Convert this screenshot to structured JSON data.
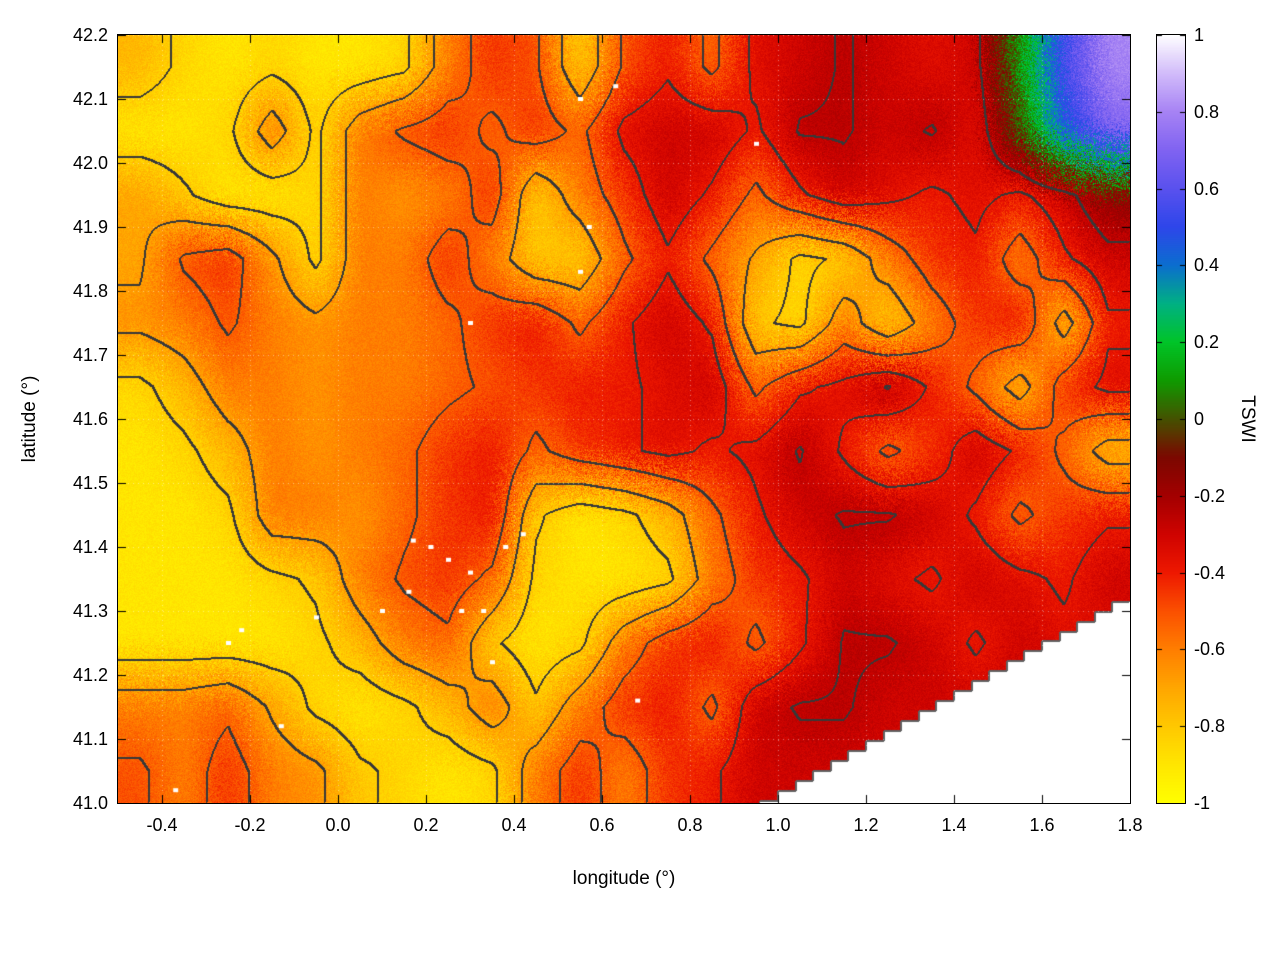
{
  "figure": {
    "background": "#ffffff",
    "axis_color": "#000000"
  },
  "chart_data": {
    "type": "heatmap",
    "title": "",
    "xlabel": "longitude (°)",
    "ylabel": "latitude (°)",
    "colorbar_label": "TSWI",
    "x_range": [
      -0.5,
      1.8
    ],
    "y_range": [
      41.0,
      42.2
    ],
    "z_range": [
      -1,
      1
    ],
    "grid_on": true,
    "legend_position": "right-colorbar",
    "ticks_x": {
      "values": [
        -0.4,
        -0.2,
        0.0,
        0.2,
        0.4,
        0.6,
        0.8,
        1.0,
        1.2,
        1.4,
        1.6,
        1.8
      ],
      "labels": [
        "-0.4",
        "-0.2",
        "0.0",
        "0.2",
        "0.4",
        "0.6",
        "0.8",
        "1.0",
        "1.2",
        "1.4",
        "1.6",
        "1.8"
      ]
    },
    "ticks_y": {
      "values": [
        41.0,
        41.1,
        41.2,
        41.3,
        41.4,
        41.5,
        41.6,
        41.7,
        41.8,
        41.9,
        42.0,
        42.1,
        42.2
      ],
      "labels": [
        "41.0",
        "41.1",
        "41.2",
        "41.3",
        "41.4",
        "41.5",
        "41.6",
        "41.7",
        "41.8",
        "41.9",
        "42.0",
        "42.1",
        "42.2"
      ]
    },
    "ticks_cb": {
      "values": [
        1,
        0.8,
        0.6,
        0.4,
        0.2,
        0,
        -0.2,
        -0.4,
        -0.6,
        -0.8,
        -1
      ],
      "labels": [
        "1",
        "0.8",
        "0.6",
        "0.4",
        "0.2",
        "0",
        "-0.2",
        "-0.4",
        "-0.6",
        "-0.8",
        "-1"
      ]
    },
    "palette": [
      [
        -1.0,
        "#ffff00"
      ],
      [
        -0.9,
        "#ffe600"
      ],
      [
        -0.8,
        "#ffc800"
      ],
      [
        -0.7,
        "#ffa600"
      ],
      [
        -0.6,
        "#ff7e00"
      ],
      [
        -0.5,
        "#fb5000"
      ],
      [
        -0.4,
        "#ee1800"
      ],
      [
        -0.3,
        "#cf0300"
      ],
      [
        -0.2,
        "#a30000"
      ],
      [
        -0.1,
        "#7c0800"
      ],
      [
        0.0,
        "#455200"
      ],
      [
        0.1,
        "#0f9b00"
      ],
      [
        0.2,
        "#00c428"
      ],
      [
        0.3,
        "#00b183"
      ],
      [
        0.4,
        "#0b6ecf"
      ],
      [
        0.5,
        "#2e46ea"
      ],
      [
        0.6,
        "#5a51ee"
      ],
      [
        0.7,
        "#8063f1"
      ],
      [
        0.8,
        "#a783f4"
      ],
      [
        0.9,
        "#d2bcfa"
      ],
      [
        1.0,
        "#ffffff"
      ]
    ],
    "contour_levels": [
      -0.82,
      -0.68,
      -0.52,
      -0.38,
      -0.26
    ],
    "contour_color": "#383838",
    "coast_color": "#606060",
    "sea_color": "#ffffff",
    "coast": {
      "x_start": 0.95,
      "y_start": 41.0,
      "x_end": 1.8,
      "y_end": 41.33
    },
    "grid": {
      "comment": "approximate TSWI values sampled on a 0.1 deg grid; rows from lat 42.15 down to 41.05, cols from lon -0.45 to 1.75; null = sea / no data",
      "x0": -0.45,
      "dx": 0.1,
      "y0": 42.15,
      "dy": -0.1,
      "cols": 23,
      "rows": 12,
      "values": [
        [
          -0.75,
          -0.85,
          -0.9,
          -0.85,
          -0.9,
          -0.9,
          -0.85,
          -0.6,
          -0.45,
          -0.5,
          -0.8,
          -0.5,
          -0.4,
          -0.55,
          -0.35,
          -0.3,
          -0.25,
          -0.3,
          -0.35,
          -0.3,
          0.1,
          0.55,
          0.8
        ],
        [
          -0.9,
          -0.9,
          -0.85,
          -0.6,
          -0.85,
          -0.6,
          -0.5,
          -0.45,
          -0.55,
          -0.45,
          -0.55,
          -0.35,
          -0.3,
          -0.3,
          -0.4,
          -0.25,
          -0.25,
          -0.3,
          -0.25,
          -0.35,
          0.0,
          0.45,
          0.7
        ],
        [
          -0.7,
          -0.8,
          -0.9,
          -0.9,
          -0.85,
          -0.6,
          -0.65,
          -0.6,
          -0.45,
          -0.8,
          -0.6,
          -0.45,
          -0.3,
          -0.4,
          -0.55,
          -0.4,
          -0.3,
          -0.35,
          -0.4,
          -0.35,
          -0.4,
          -0.3,
          -0.15
        ],
        [
          -0.7,
          -0.5,
          -0.45,
          -0.65,
          -0.85,
          -0.6,
          -0.6,
          -0.45,
          -0.6,
          -0.8,
          -0.8,
          -0.55,
          -0.4,
          -0.55,
          -0.7,
          -0.85,
          -0.8,
          -0.6,
          -0.45,
          -0.4,
          -0.6,
          -0.4,
          -0.3
        ],
        [
          -0.65,
          -0.6,
          -0.5,
          -0.6,
          -0.65,
          -0.6,
          -0.6,
          -0.55,
          -0.45,
          -0.4,
          -0.55,
          -0.4,
          -0.3,
          -0.4,
          -0.8,
          -0.85,
          -0.6,
          -0.8,
          -0.6,
          -0.45,
          -0.4,
          -0.75,
          -0.4
        ],
        [
          -0.85,
          -0.75,
          -0.6,
          -0.6,
          -0.65,
          -0.6,
          -0.6,
          -0.55,
          -0.5,
          -0.45,
          -0.4,
          -0.4,
          -0.35,
          -0.3,
          -0.55,
          -0.4,
          -0.35,
          -0.25,
          -0.4,
          -0.55,
          -0.75,
          -0.45,
          -0.35
        ],
        [
          -0.9,
          -0.85,
          -0.75,
          -0.6,
          -0.65,
          -0.6,
          -0.55,
          -0.45,
          -0.4,
          -0.55,
          -0.45,
          -0.4,
          -0.35,
          -0.4,
          -0.35,
          -0.25,
          -0.4,
          -0.55,
          -0.45,
          -0.3,
          -0.4,
          -0.55,
          -0.75
        ],
        [
          -0.9,
          -0.9,
          -0.85,
          -0.6,
          -0.6,
          -0.65,
          -0.55,
          -0.45,
          -0.4,
          -0.8,
          -0.9,
          -0.85,
          -0.75,
          -0.55,
          -0.4,
          -0.3,
          -0.25,
          -0.25,
          -0.3,
          -0.4,
          -0.55,
          -0.45,
          -0.4
        ],
        [
          -0.9,
          -0.9,
          -0.9,
          -0.85,
          -0.8,
          -0.6,
          -0.5,
          -0.45,
          -0.55,
          -0.85,
          -0.9,
          -0.9,
          -0.85,
          -0.6,
          -0.45,
          -0.4,
          -0.3,
          -0.35,
          -0.4,
          -0.3,
          -0.35,
          -0.4,
          -0.3
        ],
        [
          -0.9,
          -0.9,
          -0.9,
          -0.9,
          -0.85,
          -0.75,
          -0.6,
          -0.55,
          -0.8,
          -0.9,
          -0.85,
          -0.6,
          -0.45,
          -0.4,
          -0.55,
          -0.4,
          -0.25,
          -0.25,
          -0.3,
          -0.4,
          -0.3,
          -0.35,
          null
        ],
        [
          -0.6,
          -0.6,
          -0.55,
          -0.7,
          -0.85,
          -0.9,
          -0.85,
          -0.75,
          -0.6,
          -0.8,
          -0.6,
          -0.45,
          -0.4,
          -0.55,
          -0.3,
          -0.25,
          -0.25,
          -0.3,
          null,
          null,
          null,
          null,
          null
        ],
        [
          -0.5,
          -0.6,
          -0.45,
          -0.6,
          -0.65,
          -0.8,
          -0.85,
          -0.9,
          -0.85,
          -0.6,
          -0.45,
          -0.6,
          -0.45,
          -0.4,
          -0.3,
          null,
          null,
          null,
          null,
          null,
          null,
          null,
          null
        ]
      ]
    },
    "nodata_spots": [
      [
        0.17,
        41.41
      ],
      [
        0.21,
        41.4
      ],
      [
        0.25,
        41.38
      ],
      [
        0.3,
        41.36
      ],
      [
        0.33,
        41.3
      ],
      [
        0.28,
        41.3
      ],
      [
        0.16,
        41.33
      ],
      [
        0.1,
        41.3
      ],
      [
        -0.05,
        41.29
      ],
      [
        -0.22,
        41.27
      ],
      [
        -0.25,
        41.25
      ],
      [
        0.35,
        41.22
      ],
      [
        0.38,
        41.4
      ],
      [
        0.42,
        41.42
      ],
      [
        0.55,
        42.1
      ],
      [
        0.63,
        42.12
      ],
      [
        0.95,
        42.03
      ],
      [
        0.57,
        41.9
      ],
      [
        -0.37,
        41.02
      ],
      [
        -0.13,
        41.12
      ],
      [
        0.68,
        41.16
      ],
      [
        0.3,
        41.75
      ],
      [
        0.55,
        41.83
      ]
    ]
  }
}
